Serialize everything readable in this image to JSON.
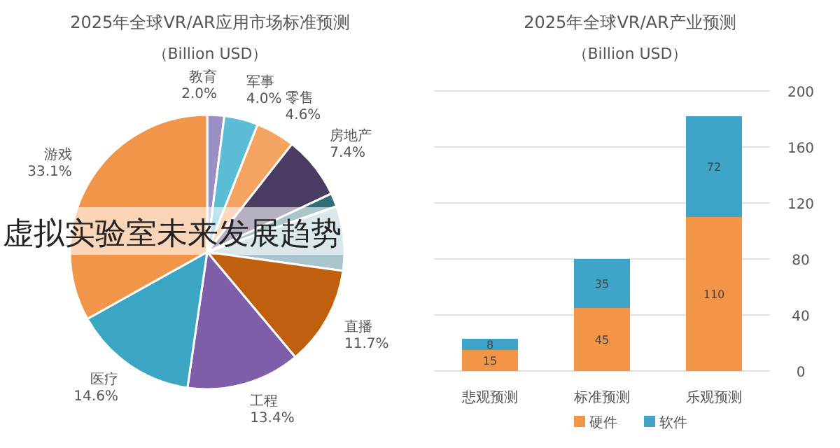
{
  "chart_data": [
    {
      "type": "pie",
      "title": "2025年全球VR/AR应用市场标准预测",
      "subtitle": "（Billion USD）",
      "categories": [
        "教育",
        "军事",
        "零售",
        "房地产",
        null,
        null,
        "直播",
        "工程",
        "医疗",
        "游戏"
      ],
      "values": [
        2.0,
        4.0,
        4.6,
        7.4,
        1.6,
        7.6,
        11.7,
        13.4,
        14.6,
        33.1
      ],
      "value_labels": [
        "2.0%",
        "4.0%",
        "4.6%",
        "7.4%",
        null,
        null,
        "11.7%",
        "13.4%",
        "14.6%",
        "33.1%"
      ],
      "colors": [
        "#9b8ec4",
        "#5bbcd6",
        "#f4a460",
        "#4a3b63",
        "#2e6e78",
        "#a9c4cc",
        "#c0600f",
        "#7e5ea8",
        "#3aa6c4",
        "#f0954a"
      ],
      "annotations": [
        "虚拟实验室未来发展趋势"
      ]
    },
    {
      "type": "bar",
      "stacked": true,
      "title": "2025年全球VR/AR产业预测",
      "subtitle": "（Billion USD）",
      "categories": [
        "悲观预测",
        "标准预测",
        "乐观预测"
      ],
      "series": [
        {
          "name": "硬件",
          "color": "#f39547",
          "values": [
            15,
            45,
            110
          ]
        },
        {
          "name": "软件",
          "color": "#3ea4c8",
          "values": [
            8,
            35,
            72
          ]
        }
      ],
      "ylim": [
        0,
        200
      ],
      "yticks": [
        0,
        40,
        80,
        120,
        160,
        200
      ],
      "grid": "y",
      "legend": "bottom",
      "data_labels": true
    }
  ]
}
